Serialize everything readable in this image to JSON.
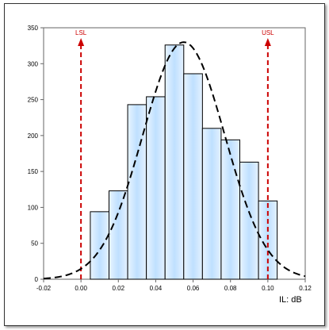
{
  "chart_data": {
    "type": "bar",
    "subtype": "histogram with normal curve and specification limits",
    "bins": [
      {
        "x0": 0.005,
        "x1": 0.015,
        "value": 94
      },
      {
        "x0": 0.015,
        "x1": 0.025,
        "value": 123
      },
      {
        "x0": 0.025,
        "x1": 0.035,
        "value": 243
      },
      {
        "x0": 0.035,
        "x1": 0.045,
        "value": 254
      },
      {
        "x0": 0.045,
        "x1": 0.055,
        "value": 326
      },
      {
        "x0": 0.055,
        "x1": 0.065,
        "value": 286
      },
      {
        "x0": 0.065,
        "x1": 0.075,
        "value": 210
      },
      {
        "x0": 0.075,
        "x1": 0.085,
        "value": 194
      },
      {
        "x0": 0.085,
        "x1": 0.095,
        "value": 163
      },
      {
        "x0": 0.095,
        "x1": 0.105,
        "value": 109
      }
    ],
    "normal_curve": {
      "mean": 0.055,
      "sd": 0.022,
      "peak": 330,
      "x_range": [
        -0.02,
        0.12
      ],
      "style": "dashed"
    },
    "spec_limits": [
      {
        "label": "LSL",
        "x": 0.0
      },
      {
        "label": "USL",
        "x": 0.1
      }
    ],
    "xlim": [
      -0.02,
      0.12
    ],
    "ylim": [
      0,
      350
    ],
    "x_ticks": [
      "-0.02",
      "0.00",
      "0.02",
      "0.04",
      "0.06",
      "0.08",
      "0.10",
      "0.12"
    ],
    "y_ticks": [
      "0",
      "50",
      "100",
      "150",
      "200",
      "250",
      "300",
      "350"
    ],
    "x_unit_label": "IL: dB",
    "grid": false,
    "legend": "none",
    "colors": {
      "bar_fill": "#cce6ff",
      "bar_stroke": "#000000",
      "limit": "#cc0000",
      "curve": "#000000"
    }
  }
}
